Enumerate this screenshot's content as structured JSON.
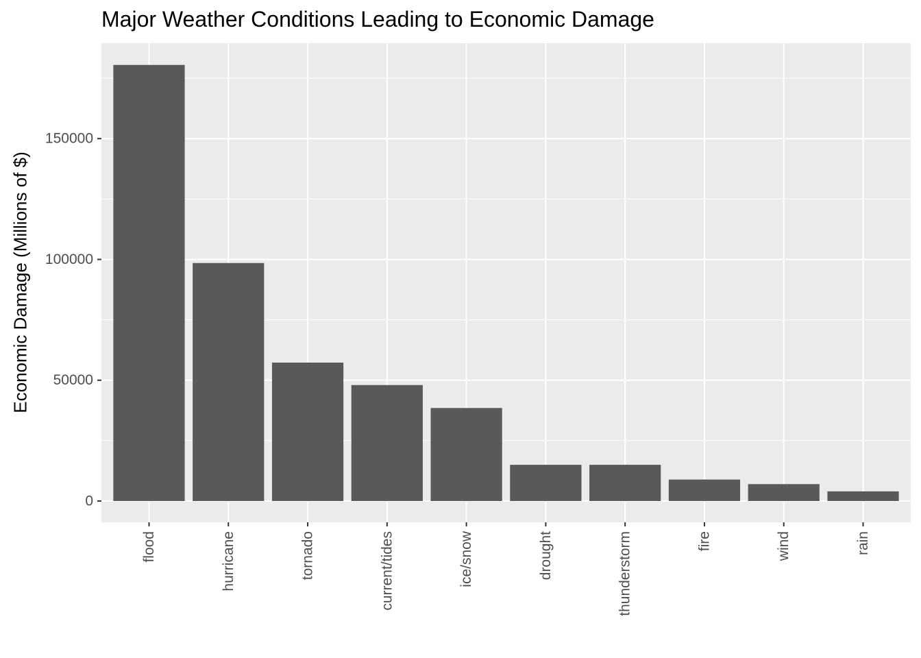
{
  "chart_data": {
    "type": "bar",
    "title": "Major Weather Conditions Leading to Economic Damage",
    "xlabel": "",
    "ylabel": "Economic Damage (Millions of $)",
    "categories": [
      "flood",
      "hurricane",
      "tornado",
      "current/tides",
      "ice/snow",
      "drought",
      "thunderstorm",
      "fire",
      "wind",
      "rain"
    ],
    "values": [
      180500,
      98500,
      57300,
      48000,
      38500,
      15000,
      15000,
      8900,
      7000,
      4000
    ],
    "ylim": [
      -8800,
      189500
    ],
    "yticks": [
      0,
      50000,
      100000,
      150000
    ],
    "ytick_labels": [
      "0",
      "50000",
      "100000",
      "150000"
    ],
    "grid": true,
    "colors": {
      "panel_bg": "#EBEBEB",
      "grid": "#FFFFFF",
      "bar": "#595959",
      "tick_text": "#4D4D4D",
      "tick_mark": "#333333"
    }
  }
}
